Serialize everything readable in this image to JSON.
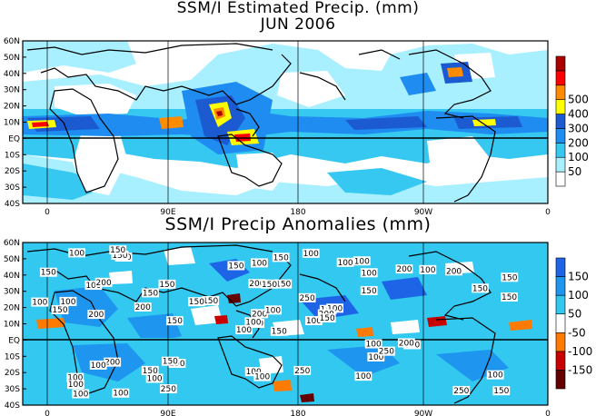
{
  "titles": {
    "map1_line1": "SSM/I Estimated Precip. (mm)",
    "map1_line2": "JUN 2006",
    "map2": "SSM/I Precip Anomalies (mm)"
  },
  "lat_labels": [
    "60N",
    "50N",
    "40N",
    "30N",
    "20N",
    "10N",
    "EQ",
    "10S",
    "20S",
    "30S",
    "40S"
  ],
  "lon_labels": [
    "0",
    "90E",
    "180",
    "90W",
    "0"
  ],
  "map1": {
    "colorbar": {
      "colors": [
        "#ffffff",
        "#a8f0ff",
        "#36c8f0",
        "#1e8cf0",
        "#1c5ad2",
        "#ffff00",
        "#ff8c00",
        "#ff0000",
        "#aa0000"
      ],
      "labels": [
        "50",
        "100",
        "200",
        "300",
        "400",
        "500"
      ]
    },
    "contour_labels": []
  },
  "map2": {
    "colorbar": {
      "colors": [
        "#640000",
        "#c80000",
        "#ff7a00",
        "#ffffff",
        "#32c8f0",
        "#1e96f0",
        "#1e64e6"
      ],
      "labels": [
        "150",
        "100",
        "50",
        "-50",
        "-100",
        "-150"
      ]
    },
    "contour_labels": [
      "150",
      "100",
      "150",
      "100",
      "100",
      "150",
      "100",
      "150",
      "100",
      "100",
      "100",
      "150",
      "200",
      "150",
      "100",
      "150",
      "100",
      "200",
      "250",
      "200",
      "150",
      "100",
      "100",
      "150",
      "100",
      "150",
      "200",
      "100",
      "150",
      "100",
      "150",
      "100",
      "100",
      "200",
      "150",
      "200",
      "150",
      "250",
      "100",
      "200",
      "100",
      "150",
      "200",
      "100",
      "250",
      "100",
      "200",
      "100",
      "100",
      "150",
      "100",
      "150",
      "150",
      "250",
      "100",
      "150",
      "150",
      "100",
      "250",
      "200",
      "150",
      "150",
      "100",
      "150",
      "100",
      "150",
      "100",
      "150",
      "100"
    ]
  },
  "colors": {
    "frame": "#000000",
    "coast": "#000000",
    "land_text": "#000000"
  }
}
